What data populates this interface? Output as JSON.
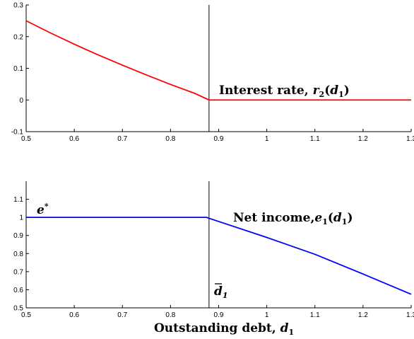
{
  "chart_data": [
    {
      "type": "line",
      "xlim": [
        0.5,
        1.3
      ],
      "ylim": [
        -0.1,
        0.3
      ],
      "x_ticks": [
        "0.5",
        "0.6",
        "0.7",
        "0.8",
        "0.9",
        "1",
        "1.1",
        "1.2",
        "1.3"
      ],
      "y_ticks": [
        "-0.1",
        "0",
        "0.1",
        "0.2",
        "0.3"
      ],
      "series": [
        {
          "color": "#ff0000",
          "x": [
            0.5,
            0.55,
            0.6,
            0.65,
            0.7,
            0.75,
            0.8,
            0.85,
            0.88,
            0.9,
            1.0,
            1.1,
            1.2,
            1.3
          ],
          "y": [
            0.25,
            0.212,
            0.176,
            0.142,
            0.11,
            0.079,
            0.049,
            0.021,
            0.0,
            0.0,
            0.0,
            0.0,
            0.0,
            0.0
          ]
        }
      ],
      "annotation": {
        "text": "Interest rate, ",
        "math_var": "r",
        "math_sub": "2",
        "math_arg_var": "d",
        "math_arg_sub": "1"
      },
      "vline_x": 0.88
    },
    {
      "type": "line",
      "xlim": [
        0.5,
        1.3
      ],
      "ylim": [
        0.5,
        1.2
      ],
      "x_ticks": [
        "0.5",
        "0.6",
        "0.7",
        "0.8",
        "0.9",
        "1",
        "1.1",
        "1.2",
        "1.3"
      ],
      "y_ticks": [
        "0.5",
        "0.6",
        "0.7",
        "0.8",
        "0.9",
        "1",
        "1.1"
      ],
      "series": [
        {
          "color": "#0000ff",
          "x": [
            0.5,
            0.6,
            0.7,
            0.8,
            0.875,
            0.88,
            1.0,
            1.1,
            1.2,
            1.3
          ],
          "y": [
            1.0,
            1.0,
            1.0,
            1.0,
            1.0,
            0.995,
            0.889,
            0.796,
            0.687,
            0.575
          ]
        }
      ],
      "annotation": {
        "text": "Net income,",
        "math_var": "e",
        "math_sub": "1",
        "math_arg_var": "d",
        "math_arg_sub": "1"
      },
      "estar": {
        "var": "e",
        "sup": "*"
      },
      "dbar": {
        "var": "d",
        "sub": "1"
      },
      "xlabel_text": "Outstanding debt, ",
      "xlabel_var": "d",
      "xlabel_sub": "1",
      "vline_x": 0.88
    }
  ]
}
